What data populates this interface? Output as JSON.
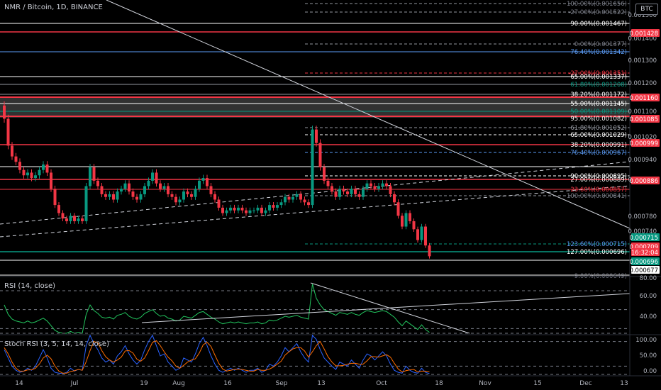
{
  "header": {
    "symbol_title": "NMR / Bitcoin, 1D, BINANCE",
    "currency_badge": "BTC"
  },
  "panes": {
    "rsi_label": "RSI (14, close)",
    "stoch_label": "Stoch RSI (3, 5, 14, 14, close)"
  },
  "price_axis_labels": [
    "0.001500",
    "0.001400",
    "0.001300",
    "0.001200",
    "0.001100",
    "0.001020",
    "0.000940",
    "0.000860",
    "0.000780",
    "0.000740"
  ],
  "price_tags": [
    {
      "text": "0.001428",
      "color": "#f23645"
    },
    {
      "text": "0.001160",
      "color": "#f23645"
    },
    {
      "text": "0.001085",
      "color": "#f23645"
    },
    {
      "text": "0.000999",
      "color": "#f23645"
    },
    {
      "text": "0.000886",
      "color": "#f23645"
    },
    {
      "text": "0.000715",
      "color": "#089981"
    },
    {
      "text": "0.000709",
      "color": "#f23645"
    },
    {
      "text": "16:32:04",
      "color": "#f23645"
    },
    {
      "text": "0.000696",
      "color": "#089981"
    },
    {
      "text": "0.000677",
      "color": "#ffffff"
    }
  ],
  "fib_labels": [
    "100.00%(0.001656)",
    "-27.00%(0.001522)",
    "90.00%(0.001467)",
    "0.00%(0.001377)",
    "76.40%(0.001342)",
    "-27.00%(0.001351)",
    "65.00%(0.001337)",
    "61.80%(0.001208)",
    "38.20%(0.001172)",
    "55.00%(0.001145)",
    "50.00%(0.001109)",
    "95.00%(0.001082)",
    "61.80%(0.001052)",
    "65.00%(0.001029)",
    "38.20%(0.000991)",
    "76.40%(0.000967)",
    "90.00%(0.000895)",
    "27.00%(0.000889)",
    "23.60%(0.000857)",
    "100.00%(0.000841)",
    "123.60%(0.000715)",
    "127.00%(0.000696)",
    "-9.00%(0.000649)"
  ],
  "rsi_axis_labels": [
    "80.00",
    "60.00",
    "40.00"
  ],
  "stoch_axis_labels": [
    "100.00",
    "50.00",
    "0.00"
  ],
  "time_axis_labels": [
    "14",
    "Jul",
    "19",
    "Aug",
    "16",
    "Sep",
    "13",
    "Oct",
    "18",
    "Nov",
    "15",
    "Dec",
    "13"
  ],
  "chart_data": {
    "type": "candlestick",
    "title": "NMR / Bitcoin, 1D, BINANCE",
    "currency": "BTC",
    "price_range": [
      0.00064,
      0.00166
    ],
    "grid": false,
    "close_series": [
      0.00122,
      0.00112,
      0.00108,
      0.00106,
      0.00103,
      0.00101,
      0.00102,
      0.001,
      0.00101,
      0.00103,
      0.00105,
      0.00102,
      0.00096,
      0.0009,
      0.00087,
      0.00085,
      0.00084,
      0.00086,
      0.00084,
      0.00085,
      0.00084,
      0.00097,
      0.00104,
      0.00099,
      0.00097,
      0.00094,
      0.00093,
      0.00094,
      0.00092,
      0.00095,
      0.00096,
      0.00098,
      0.00095,
      0.00093,
      0.00092,
      0.00094,
      0.00097,
      0.00099,
      0.00102,
      0.00098,
      0.00096,
      0.00097,
      0.00094,
      0.00093,
      0.00091,
      0.00092,
      0.00095,
      0.00094,
      0.00093,
      0.00096,
      0.00099,
      0.001,
      0.00097,
      0.00094,
      0.00092,
      0.00089,
      0.00087,
      0.00088,
      0.00089,
      0.00088,
      0.00089,
      0.00088,
      0.00087,
      0.00088,
      0.00088,
      0.00089,
      0.00087,
      0.00088,
      0.0009,
      0.00089,
      0.0009,
      0.00091,
      0.00093,
      0.00092,
      0.00093,
      0.00094,
      0.00092,
      0.00091,
      0.0009,
      0.00118,
      0.00113,
      0.00104,
      0.00099,
      0.00097,
      0.00095,
      0.00093,
      0.00096,
      0.00095,
      0.00094,
      0.00096,
      0.00094,
      0.00093,
      0.00096,
      0.00098,
      0.00097,
      0.00096,
      0.00097,
      0.00098,
      0.00097,
      0.00094,
      0.00091,
      0.00086,
      0.00082,
      0.00087,
      0.00084,
      0.00081,
      0.00077,
      0.00082,
      0.00075,
      0.00071
    ],
    "rsi_series": [
      55,
      45,
      40,
      38,
      37,
      36,
      38,
      36,
      37,
      39,
      41,
      38,
      33,
      28,
      26,
      25,
      25,
      27,
      25,
      26,
      25,
      45,
      55,
      49,
      46,
      42,
      41,
      42,
      40,
      44,
      45,
      47,
      43,
      41,
      40,
      42,
      46,
      48,
      50,
      46,
      43,
      44,
      41,
      40,
      38,
      39,
      43,
      42,
      41,
      44,
      47,
      48,
      45,
      42,
      40,
      37,
      35,
      36,
      37,
      36,
      37,
      36,
      35,
      36,
      36,
      37,
      35,
      36,
      39,
      38,
      39,
      41,
      43,
      42,
      43,
      44,
      42,
      41,
      40,
      77,
      62,
      55,
      50,
      48,
      46,
      44,
      47,
      46,
      45,
      47,
      45,
      44,
      47,
      49,
      48,
      47,
      48,
      49,
      48,
      45,
      42,
      37,
      33,
      38,
      35,
      32,
      29,
      34,
      29,
      26
    ],
    "stoch_k": [
      60,
      40,
      20,
      10,
      5,
      8,
      15,
      10,
      20,
      40,
      60,
      40,
      15,
      5,
      3,
      2,
      5,
      15,
      8,
      12,
      10,
      70,
      95,
      75,
      60,
      40,
      30,
      35,
      25,
      45,
      55,
      70,
      50,
      35,
      25,
      35,
      60,
      80,
      95,
      70,
      45,
      50,
      30,
      20,
      10,
      15,
      40,
      35,
      30,
      50,
      75,
      90,
      70,
      45,
      25,
      10,
      5,
      10,
      15,
      10,
      15,
      10,
      5,
      10,
      10,
      15,
      5,
      10,
      25,
      20,
      30,
      45,
      65,
      55,
      65,
      75,
      55,
      40,
      30,
      95,
      85,
      60,
      40,
      30,
      20,
      12,
      30,
      25,
      20,
      35,
      25,
      15,
      35,
      50,
      45,
      35,
      45,
      55,
      45,
      25,
      10,
      5,
      3,
      20,
      10,
      5,
      3,
      15,
      5,
      2
    ],
    "stoch_d": [
      65,
      50,
      30,
      15,
      8,
      8,
      11,
      11,
      15,
      25,
      40,
      47,
      38,
      20,
      8,
      3,
      3,
      7,
      9,
      12,
      10,
      31,
      58,
      80,
      77,
      58,
      43,
      35,
      30,
      35,
      42,
      57,
      58,
      52,
      37,
      32,
      40,
      58,
      78,
      82,
      70,
      55,
      42,
      33,
      20,
      15,
      22,
      30,
      35,
      38,
      52,
      72,
      78,
      68,
      47,
      27,
      13,
      8,
      10,
      12,
      13,
      12,
      10,
      8,
      8,
      12,
      10,
      10,
      13,
      18,
      25,
      32,
      47,
      55,
      62,
      65,
      65,
      57,
      42,
      55,
      70,
      80,
      62,
      43,
      30,
      21,
      21,
      22,
      25,
      27,
      27,
      25,
      25,
      33,
      43,
      43,
      42,
      45,
      48,
      42,
      27,
      13,
      6,
      9,
      11,
      12,
      6,
      8,
      8,
      7
    ]
  }
}
